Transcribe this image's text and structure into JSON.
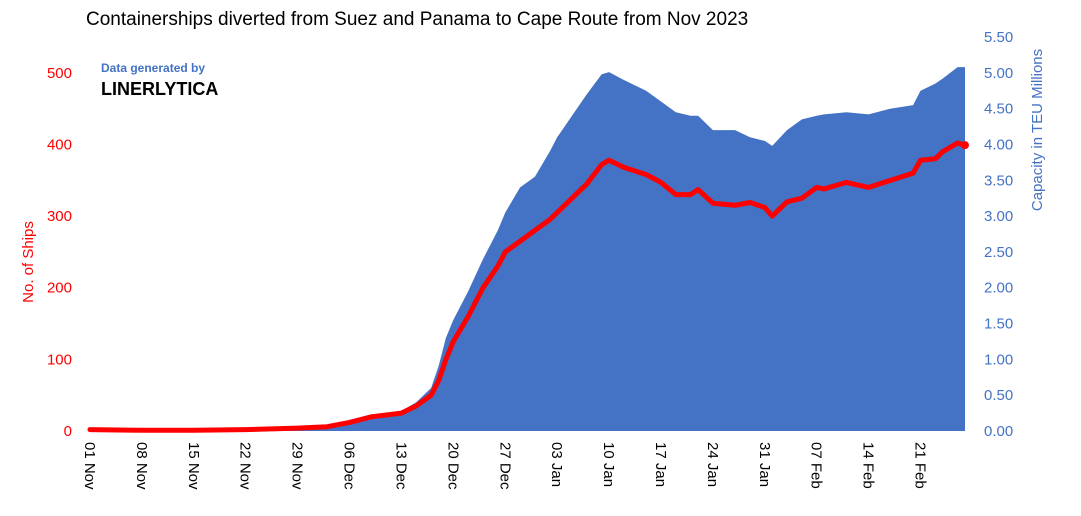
{
  "chart_data": {
    "type": "area+line",
    "title": "Containerships diverted from Suez and Panama to Cape Route from Nov 2023",
    "watermark": {
      "line1": "Data generated by",
      "line2": "LINERLYTICA"
    },
    "colors": {
      "ships": "#ff0000",
      "capacity": "#4472c4",
      "left_axis": "#ff0000",
      "right_axis": "#4472c4"
    },
    "y_left": {
      "label": "No. of Ships",
      "range": [
        0,
        550
      ],
      "ticks": [
        0,
        100,
        200,
        300,
        400,
        500
      ]
    },
    "y_right": {
      "label": "Capacity in TEU Millions",
      "range": [
        0,
        5.5
      ],
      "ticks": [
        "0.00",
        "0.50",
        "1.00",
        "1.50",
        "2.00",
        "2.50",
        "3.00",
        "3.50",
        "4.00",
        "4.50",
        "5.00",
        "5.50"
      ]
    },
    "x_axis": {
      "start": "2023-11-01",
      "end": "2024-02-27",
      "tick_labels": [
        "01 Nov",
        "08 Nov",
        "15 Nov",
        "22 Nov",
        "29 Nov",
        "06 Dec",
        "13 Dec",
        "20 Dec",
        "27 Dec",
        "03 Jan",
        "10 Jan",
        "17 Jan",
        "24 Jan",
        "31 Jan",
        "07 Feb",
        "14 Feb",
        "21 Feb"
      ],
      "tick_dates": [
        "2023-11-01",
        "2023-11-08",
        "2023-11-15",
        "2023-11-22",
        "2023-11-29",
        "2023-12-06",
        "2023-12-13",
        "2023-12-20",
        "2023-12-27",
        "2024-01-03",
        "2024-01-10",
        "2024-01-17",
        "2024-01-24",
        "2024-01-31",
        "2024-02-07",
        "2024-02-14",
        "2024-02-21"
      ]
    },
    "series": [
      {
        "name": "No. of Ships",
        "axis": "left",
        "type": "line",
        "points": [
          [
            "2023-11-01",
            2
          ],
          [
            "2023-11-08",
            1
          ],
          [
            "2023-11-15",
            1
          ],
          [
            "2023-11-22",
            2
          ],
          [
            "2023-11-29",
            4
          ],
          [
            "2023-12-03",
            6
          ],
          [
            "2023-12-06",
            12
          ],
          [
            "2023-12-09",
            20
          ],
          [
            "2023-12-13",
            25
          ],
          [
            "2023-12-15",
            35
          ],
          [
            "2023-12-17",
            50
          ],
          [
            "2023-12-18",
            70
          ],
          [
            "2023-12-19",
            100
          ],
          [
            "2023-12-20",
            125
          ],
          [
            "2023-12-22",
            160
          ],
          [
            "2023-12-24",
            200
          ],
          [
            "2023-12-26",
            230
          ],
          [
            "2023-12-27",
            250
          ],
          [
            "2023-12-29",
            265
          ],
          [
            "2023-12-31",
            280
          ],
          [
            "2024-01-02",
            295
          ],
          [
            "2024-01-03",
            305
          ],
          [
            "2024-01-05",
            325
          ],
          [
            "2024-01-07",
            345
          ],
          [
            "2024-01-09",
            372
          ],
          [
            "2024-01-10",
            378
          ],
          [
            "2024-01-12",
            368
          ],
          [
            "2024-01-15",
            358
          ],
          [
            "2024-01-17",
            347
          ],
          [
            "2024-01-19",
            330
          ],
          [
            "2024-01-21",
            330
          ],
          [
            "2024-01-22",
            337
          ],
          [
            "2024-01-24",
            318
          ],
          [
            "2024-01-27",
            315
          ],
          [
            "2024-01-29",
            319
          ],
          [
            "2024-01-31",
            312
          ],
          [
            "2024-02-01",
            300
          ],
          [
            "2024-02-03",
            320
          ],
          [
            "2024-02-05",
            325
          ],
          [
            "2024-02-07",
            340
          ],
          [
            "2024-02-08",
            338
          ],
          [
            "2024-02-11",
            347
          ],
          [
            "2024-02-14",
            340
          ],
          [
            "2024-02-17",
            350
          ],
          [
            "2024-02-20",
            360
          ],
          [
            "2024-02-21",
            378
          ],
          [
            "2024-02-23",
            380
          ],
          [
            "2024-02-24",
            390
          ],
          [
            "2024-02-26",
            402
          ],
          [
            "2024-02-27",
            399
          ]
        ]
      },
      {
        "name": "Capacity in TEU Millions",
        "axis": "right",
        "type": "area",
        "points": [
          [
            "2023-11-01",
            0.02
          ],
          [
            "2023-11-08",
            0.01
          ],
          [
            "2023-11-15",
            0.01
          ],
          [
            "2023-11-22",
            0.02
          ],
          [
            "2023-11-29",
            0.04
          ],
          [
            "2023-12-03",
            0.07
          ],
          [
            "2023-12-06",
            0.13
          ],
          [
            "2023-12-09",
            0.2
          ],
          [
            "2023-12-13",
            0.28
          ],
          [
            "2023-12-15",
            0.4
          ],
          [
            "2023-12-17",
            0.6
          ],
          [
            "2023-12-18",
            0.9
          ],
          [
            "2023-12-19",
            1.3
          ],
          [
            "2023-12-20",
            1.55
          ],
          [
            "2023-12-22",
            1.95
          ],
          [
            "2023-12-24",
            2.4
          ],
          [
            "2023-12-26",
            2.8
          ],
          [
            "2023-12-27",
            3.05
          ],
          [
            "2023-12-29",
            3.4
          ],
          [
            "2023-12-31",
            3.55
          ],
          [
            "2024-01-02",
            3.9
          ],
          [
            "2024-01-03",
            4.1
          ],
          [
            "2024-01-05",
            4.4
          ],
          [
            "2024-01-07",
            4.7
          ],
          [
            "2024-01-09",
            4.98
          ],
          [
            "2024-01-10",
            5.01
          ],
          [
            "2024-01-12",
            4.9
          ],
          [
            "2024-01-15",
            4.75
          ],
          [
            "2024-01-17",
            4.6
          ],
          [
            "2024-01-19",
            4.45
          ],
          [
            "2024-01-21",
            4.4
          ],
          [
            "2024-01-22",
            4.4
          ],
          [
            "2024-01-24",
            4.2
          ],
          [
            "2024-01-27",
            4.2
          ],
          [
            "2024-01-29",
            4.1
          ],
          [
            "2024-01-31",
            4.05
          ],
          [
            "2024-02-01",
            3.98
          ],
          [
            "2024-02-03",
            4.2
          ],
          [
            "2024-02-05",
            4.35
          ],
          [
            "2024-02-07",
            4.4
          ],
          [
            "2024-02-08",
            4.42
          ],
          [
            "2024-02-11",
            4.45
          ],
          [
            "2024-02-14",
            4.42
          ],
          [
            "2024-02-17",
            4.5
          ],
          [
            "2024-02-20",
            4.55
          ],
          [
            "2024-02-21",
            4.75
          ],
          [
            "2024-02-23",
            4.85
          ],
          [
            "2024-02-24",
            4.92
          ],
          [
            "2024-02-26",
            5.08
          ],
          [
            "2024-02-27",
            5.08
          ]
        ]
      }
    ]
  }
}
